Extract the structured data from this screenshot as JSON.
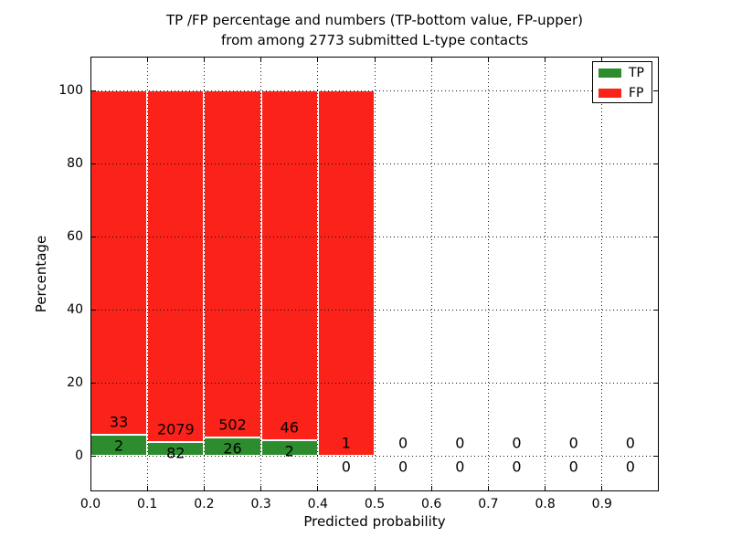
{
  "title": {
    "line1": "TP /FP percentage and numbers (TP-bottom value, FP-upper)",
    "line2": "from among 2773 submitted L-type contacts"
  },
  "axes": {
    "xlabel": "Predicted probability",
    "ylabel": "Percentage",
    "x_tick_labels": [
      "0.0",
      "0.1",
      "0.2",
      "0.3",
      "0.4",
      "0.5",
      "0.6",
      "0.7",
      "0.8",
      "0.9"
    ],
    "y_tick_labels": [
      "0",
      "20",
      "40",
      "60",
      "80",
      "100"
    ]
  },
  "legend": {
    "items": [
      {
        "label": "TP",
        "color": "#2d8c2e"
      },
      {
        "label": "FP",
        "color": "#fb221a"
      }
    ]
  },
  "colors": {
    "tp_green": "#2d8c2e",
    "fp_red": "#fb221a",
    "grid": "#111111",
    "bar_edge": "#ffffff"
  },
  "chart_data": {
    "type": "bar",
    "subtype": "stacked-100-percent",
    "title": "TP /FP percentage and numbers (TP-bottom value, FP-upper) from among 2773 submitted L-type contacts",
    "xlabel": "Predicted probability",
    "ylabel": "Percentage",
    "xlim": [
      0.0,
      1.0
    ],
    "ylim": [
      -10,
      110
    ],
    "x_tick_values": [
      0.0,
      0.1,
      0.2,
      0.3,
      0.4,
      0.5,
      0.6,
      0.7,
      0.8,
      0.9
    ],
    "y_tick_values": [
      0,
      20,
      40,
      60,
      80,
      100
    ],
    "bin_width": 0.1,
    "bin_starts": [
      0.0,
      0.1,
      0.2,
      0.3,
      0.4,
      0.5,
      0.6,
      0.7,
      0.8,
      0.9
    ],
    "series": [
      {
        "name": "TP",
        "color": "#2d8c2e",
        "values": [
          2,
          82,
          26,
          2,
          0,
          0,
          0,
          0,
          0,
          0
        ]
      },
      {
        "name": "FP",
        "color": "#fb221a",
        "values": [
          33,
          2079,
          502,
          46,
          1,
          0,
          0,
          0,
          0,
          0
        ]
      }
    ],
    "tp_percent_of_bin": [
      5.71,
      3.79,
      4.92,
      4.17,
      0.0,
      null,
      null,
      null,
      null,
      null
    ],
    "bars_total_height_percent": [
      100,
      100,
      100,
      100,
      100,
      0,
      0,
      0,
      0,
      0
    ],
    "total_contacts": 2773,
    "grid": "dotted, drawn above bars",
    "legend_position": "upper right"
  }
}
